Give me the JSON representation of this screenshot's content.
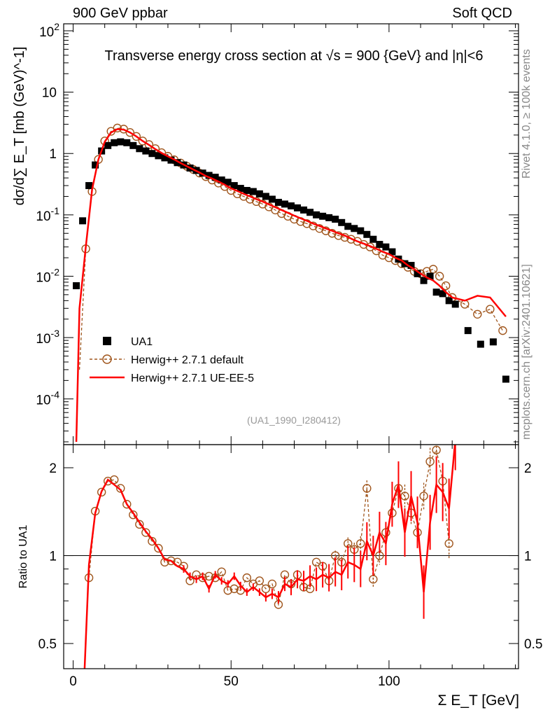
{
  "header": {
    "left": "900 GeV ppbar",
    "right": "Soft QCD"
  },
  "side_labels": {
    "top": "Rivet 4.1.0, ≥ 100k events",
    "bottom": "mcplots.cern.ch [arXiv:2401.10621]"
  },
  "analysis_tag": "(UA1_1990_I280412)",
  "colors": {
    "data": "#000000",
    "herwig_default": "#a0561d",
    "herwig_ueee5": "#ff0000",
    "tag": "#999999"
  },
  "chart_data": [
    {
      "type": "scatter",
      "title": "Transverse energy cross section at √s = 900 {GeV} and |η|<6",
      "ylabel": "dσ/d∑ E_T [mb (GeV)^-1]",
      "xlabel": "Σ E_T [GeV]",
      "xlim": [
        -3,
        141
      ],
      "ylim": [
        1.8e-05,
        130
      ],
      "yscale": "log",
      "yticks": [
        "10^-4",
        "10^-3",
        "10^-2",
        "10^-1",
        "1",
        "10",
        "10^2"
      ],
      "legend": {
        "placement": "bottom-left",
        "entries": [
          "UA1",
          "Herwig++ 2.7.1 default",
          "Herwig++ 2.7.1 UE-EE-5"
        ]
      },
      "series": [
        {
          "name": "UA1",
          "x": [
            1,
            3,
            5,
            7,
            9,
            11,
            13,
            15,
            17,
            19,
            21,
            23,
            25,
            27,
            29,
            31,
            33,
            35,
            37,
            39,
            41,
            43,
            45,
            47,
            49,
            51,
            53,
            55,
            57,
            59,
            61,
            63,
            65,
            67,
            69,
            71,
            73,
            75,
            77,
            79,
            81,
            83,
            85,
            87,
            89,
            91,
            93,
            95,
            97,
            99,
            101,
            103,
            105,
            107,
            109,
            111,
            113,
            115,
            117,
            119,
            121,
            125,
            129,
            133,
            137
          ],
          "values": [
            0.007,
            0.08,
            0.3,
            0.65,
            1.1,
            1.35,
            1.5,
            1.55,
            1.5,
            1.35,
            1.2,
            1.1,
            1.0,
            0.92,
            0.85,
            0.78,
            0.71,
            0.65,
            0.58,
            0.53,
            0.48,
            0.44,
            0.41,
            0.37,
            0.34,
            0.3,
            0.27,
            0.25,
            0.24,
            0.22,
            0.2,
            0.18,
            0.16,
            0.15,
            0.14,
            0.13,
            0.12,
            0.11,
            0.1,
            0.095,
            0.09,
            0.085,
            0.075,
            0.065,
            0.06,
            0.055,
            0.048,
            0.04,
            0.033,
            0.03,
            0.025,
            0.019,
            0.016,
            0.015,
            0.011,
            0.0085,
            0.01,
            0.0055,
            0.0052,
            0.004,
            0.0035,
            0.0013,
            0.00078,
            0.00085,
            0.00021
          ]
        },
        {
          "name": "Herwig++ 2.7.1 default",
          "x": [
            2,
            4,
            6,
            8,
            10,
            12,
            14,
            16,
            18,
            20,
            22,
            24,
            26,
            28,
            30,
            32,
            34,
            36,
            38,
            40,
            42,
            44,
            46,
            48,
            50,
            52,
            54,
            56,
            58,
            60,
            62,
            64,
            66,
            68,
            70,
            72,
            74,
            76,
            78,
            80,
            82,
            84,
            86,
            88,
            90,
            92,
            94,
            96,
            98,
            100,
            102,
            104,
            106,
            108,
            110,
            112,
            114,
            116,
            118,
            120,
            124,
            128,
            132,
            136
          ],
          "values": [
            0.0003,
            0.028,
            0.24,
            0.8,
            1.6,
            2.3,
            2.6,
            2.5,
            2.2,
            1.9,
            1.6,
            1.4,
            1.2,
            1.03,
            0.9,
            0.79,
            0.7,
            0.62,
            0.55,
            0.48,
            0.42,
            0.37,
            0.33,
            0.29,
            0.25,
            0.22,
            0.2,
            0.18,
            0.165,
            0.15,
            0.135,
            0.12,
            0.105,
            0.095,
            0.085,
            0.078,
            0.072,
            0.066,
            0.06,
            0.055,
            0.05,
            0.046,
            0.043,
            0.04,
            0.037,
            0.033,
            0.03,
            0.026,
            0.022,
            0.02,
            0.018,
            0.016,
            0.014,
            0.012,
            0.011,
            0.012,
            0.013,
            0.01,
            0.007,
            0.0045,
            0.0035,
            0.0024,
            0.0029,
            0.0013
          ]
        },
        {
          "name": "Herwig++ 2.7.1 UE-EE-5",
          "x": [
            1,
            2,
            4,
            6,
            8,
            10,
            12,
            14,
            16,
            18,
            20,
            22,
            24,
            26,
            28,
            30,
            32,
            34,
            36,
            38,
            40,
            42,
            44,
            46,
            48,
            50,
            52,
            54,
            56,
            58,
            60,
            62,
            64,
            66,
            68,
            70,
            72,
            74,
            76,
            78,
            80,
            82,
            84,
            86,
            88,
            90,
            92,
            94,
            96,
            98,
            100,
            102,
            104,
            106,
            108,
            110,
            112,
            114,
            116,
            118,
            120,
            124,
            128,
            132,
            137
          ],
          "values": [
            2e-05,
            0.003,
            0.03,
            0.26,
            0.8,
            1.55,
            2.2,
            2.5,
            2.45,
            2.2,
            1.9,
            1.6,
            1.38,
            1.18,
            1.02,
            0.9,
            0.8,
            0.7,
            0.62,
            0.55,
            0.49,
            0.43,
            0.39,
            0.35,
            0.31,
            0.27,
            0.245,
            0.22,
            0.2,
            0.18,
            0.165,
            0.148,
            0.133,
            0.12,
            0.108,
            0.097,
            0.088,
            0.08,
            0.072,
            0.066,
            0.06,
            0.055,
            0.05,
            0.046,
            0.041,
            0.037,
            0.034,
            0.031,
            0.028,
            0.025,
            0.023,
            0.02,
            0.018,
            0.015,
            0.013,
            0.011,
            0.0095,
            0.0085,
            0.007,
            0.0055,
            0.0045,
            0.004,
            0.0048,
            0.0045,
            0.0022
          ]
        }
      ]
    },
    {
      "type": "line",
      "ylabel": "Ratio to UA1",
      "xlabel": "Σ E_T [GeV]",
      "xlim": [
        -3,
        141
      ],
      "ylim": [
        0.41,
        2.4
      ],
      "yscale": "log",
      "xticks": [
        "0",
        "50",
        "100"
      ],
      "yticks": [
        "0.5",
        "1",
        "2"
      ],
      "reference_line": 1,
      "series": [
        {
          "name": "Herwig++ 2.7.1 default",
          "x": [
            5,
            7,
            9,
            11,
            13,
            15,
            17,
            19,
            21,
            23,
            25,
            27,
            29,
            31,
            33,
            35,
            37,
            39,
            41,
            43,
            45,
            47,
            49,
            51,
            53,
            55,
            57,
            59,
            61,
            63,
            65,
            67,
            69,
            71,
            73,
            75,
            77,
            79,
            81,
            83,
            85,
            87,
            89,
            91,
            93,
            95,
            97,
            99,
            101,
            103,
            105,
            107,
            109,
            111,
            113,
            115,
            117,
            119
          ],
          "values": [
            0.84,
            1.42,
            1.65,
            1.8,
            1.82,
            1.7,
            1.5,
            1.38,
            1.28,
            1.2,
            1.12,
            1.06,
            0.95,
            0.96,
            0.95,
            0.92,
            0.82,
            0.86,
            0.84,
            0.85,
            0.84,
            0.88,
            0.76,
            0.77,
            0.76,
            0.84,
            0.8,
            0.82,
            0.77,
            0.8,
            0.68,
            0.86,
            0.8,
            0.86,
            0.78,
            0.77,
            0.95,
            0.92,
            0.82,
            1.0,
            0.95,
            1.1,
            1.05,
            1.1,
            1.7,
            0.83,
            1.0,
            1.2,
            1.4,
            1.7,
            1.6,
            1.4,
            1.2,
            1.6,
            2.1,
            2.3,
            1.8,
            1.1
          ]
        },
        {
          "name": "Herwig++ 2.7.1 UE-EE-5",
          "x": [
            3.5,
            5,
            7,
            9,
            11,
            13,
            15,
            17,
            19,
            21,
            23,
            25,
            27,
            29,
            31,
            33,
            35,
            37,
            39,
            41,
            43,
            45,
            47,
            49,
            51,
            53,
            55,
            57,
            59,
            61,
            63,
            65,
            67,
            69,
            71,
            73,
            75,
            77,
            79,
            81,
            83,
            85,
            87,
            89,
            91,
            93,
            95,
            97,
            99,
            101,
            103,
            105,
            107,
            109,
            111,
            113,
            115,
            117,
            119,
            121
          ],
          "values": [
            0.38,
            0.93,
            1.4,
            1.66,
            1.82,
            1.75,
            1.68,
            1.5,
            1.4,
            1.3,
            1.21,
            1.14,
            1.06,
            0.97,
            0.96,
            0.92,
            0.9,
            0.85,
            0.83,
            0.85,
            0.77,
            0.86,
            0.82,
            0.8,
            0.85,
            0.79,
            0.75,
            0.78,
            0.75,
            0.72,
            0.74,
            0.72,
            0.8,
            0.78,
            0.83,
            0.82,
            0.85,
            0.83,
            0.86,
            0.84,
            0.88,
            0.86,
            0.95,
            0.93,
            0.9,
            1.12,
            1.0,
            1.2,
            1.1,
            1.5,
            1.75,
            1.2,
            1.6,
            1.3,
            0.75,
            1.3,
            1.75,
            1.65,
            1.45,
            2.5
          ]
        }
      ]
    }
  ]
}
